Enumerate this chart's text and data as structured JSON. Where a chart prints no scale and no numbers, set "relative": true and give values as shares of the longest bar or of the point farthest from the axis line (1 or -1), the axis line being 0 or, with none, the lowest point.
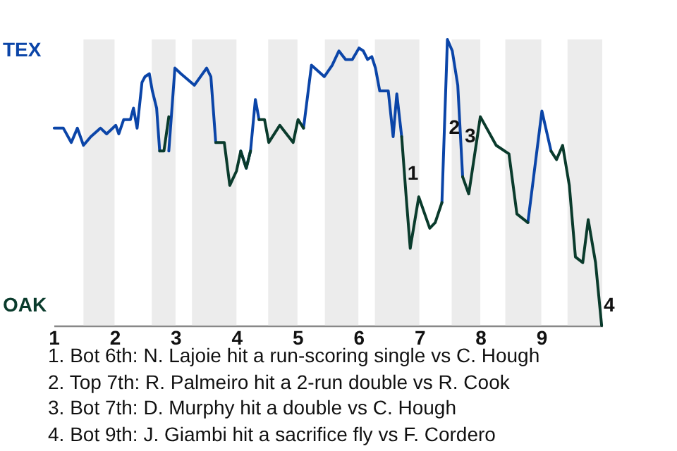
{
  "chart_data": {
    "type": "line",
    "relative": true,
    "xlim": [
      1,
      10
    ],
    "xticks": [
      1,
      2,
      3,
      4,
      5,
      6,
      7,
      8,
      9
    ],
    "x": [
      1.01,
      1.16,
      1.29,
      1.39,
      1.49,
      1.61,
      1.77,
      1.87,
      2.02,
      2.07,
      2.15,
      2.26,
      2.31,
      2.37,
      2.45,
      2.5,
      2.57,
      2.62,
      2.69,
      2.74,
      2.81,
      2.89,
      2.99,
      3.09,
      3.31,
      3.51,
      3.58,
      3.66,
      3.8,
      3.89,
      4.0,
      4.07,
      4.16,
      4.23,
      4.31,
      4.37,
      4.46,
      4.53,
      4.71,
      4.93,
      5.01,
      5.1,
      5.23,
      5.44,
      5.57,
      5.68,
      5.79,
      5.9,
      6.01,
      6.08,
      6.15,
      6.22,
      6.28,
      6.35,
      6.49,
      6.57,
      6.63,
      6.71,
      6.78,
      6.85,
      6.99,
      7.17,
      7.26,
      7.37,
      7.46,
      7.54,
      7.63,
      7.71,
      7.81,
      8.0,
      8.26,
      8.47,
      8.6,
      8.78,
      9.01,
      9.16,
      9.25,
      9.35,
      9.46,
      9.56,
      9.68,
      9.77,
      9.89,
      9.99
    ],
    "series": [
      {
        "color": "#0b45a8",
        "values": [
          0.69,
          0.69,
          0.64,
          0.69,
          0.63,
          0.66,
          0.69,
          0.67,
          0.7,
          0.67,
          0.72,
          0.72,
          0.76,
          0.69,
          0.85,
          0.87,
          0.88,
          0.82,
          0.76,
          0.61,
          null,
          0.61,
          0.9,
          0.88,
          0.84,
          0.9,
          0.87,
          0.64,
          null,
          null,
          null,
          0.61,
          0.55,
          0.61,
          0.79,
          0.72,
          null,
          null,
          null,
          null,
          null,
          0.69,
          0.91,
          0.87,
          0.91,
          0.96,
          0.93,
          0.93,
          0.97,
          0.96,
          0.93,
          0.94,
          0.9,
          0.82,
          0.82,
          0.66,
          0.81,
          0.66,
          null,
          null,
          null,
          null,
          null,
          0.43,
          1,
          0.96,
          0.84,
          0.52,
          null,
          null,
          null,
          null,
          null,
          0.36,
          0.75,
          0.61,
          null,
          null,
          null,
          null,
          null,
          null,
          null,
          null
        ]
      },
      {
        "color": "#0a3b2c",
        "values": [
          null,
          null,
          null,
          null,
          null,
          null,
          null,
          null,
          null,
          null,
          null,
          null,
          null,
          null,
          null,
          null,
          null,
          null,
          null,
          0.61,
          0.61,
          0.73,
          null,
          null,
          null,
          null,
          null,
          0.64,
          0.64,
          0.49,
          0.54,
          0.61,
          0.55,
          0.61,
          null,
          0.72,
          0.72,
          0.64,
          0.7,
          0.64,
          0.72,
          0.69,
          null,
          null,
          null,
          null,
          null,
          null,
          null,
          null,
          null,
          null,
          null,
          null,
          null,
          null,
          null,
          0.66,
          0.46,
          0.27,
          0.45,
          0.34,
          0.36,
          0.43,
          null,
          null,
          null,
          0.52,
          0.46,
          0.73,
          0.63,
          0.6,
          0.39,
          0.36,
          null,
          0.61,
          0.58,
          0.63,
          0.49,
          0.24,
          0.22,
          0.37,
          0.22,
          0
        ]
      }
    ],
    "bands": [
      {
        "axis": "x",
        "from": 1.49,
        "to": 2,
        "color": "#ececec"
      },
      {
        "axis": "x",
        "from": 2.61,
        "to": 3,
        "color": "#ececec"
      },
      {
        "axis": "x",
        "from": 3.27,
        "to": 4,
        "color": "#ececec"
      },
      {
        "axis": "x",
        "from": 4.52,
        "to": 5,
        "color": "#ececec"
      },
      {
        "axis": "x",
        "from": 5.45,
        "to": 6,
        "color": "#ececec"
      },
      {
        "axis": "x",
        "from": 6.27,
        "to": 7,
        "color": "#ececec"
      },
      {
        "axis": "x",
        "from": 7.53,
        "to": 8,
        "color": "#ececec"
      },
      {
        "axis": "x",
        "from": 8.41,
        "to": 9,
        "color": "#ececec"
      },
      {
        "axis": "x",
        "from": 9.43,
        "to": 10,
        "color": "#ececec"
      }
    ],
    "annotations": [
      "TEX",
      "OAK",
      {
        "text": "1",
        "x": 6.78,
        "y": 0.53
      },
      {
        "text": "2",
        "x": 7.46,
        "y": 0.69
      },
      {
        "text": "3",
        "x": 7.72,
        "y": 0.66
      },
      {
        "text": "4",
        "x": 10,
        "y": 0.07
      },
      "1. Bot 6th: N. Lajoie hit a run-scoring single vs C. Hough",
      "2. Top 7th: R. Palmeiro hit a 2-run double vs R. Cook",
      "3. Bot 7th: D. Murphy hit a double vs C. Hough",
      "4. Bot 9th: J. Giambi hit a sacrifice fly vs F. Cordero"
    ]
  }
}
